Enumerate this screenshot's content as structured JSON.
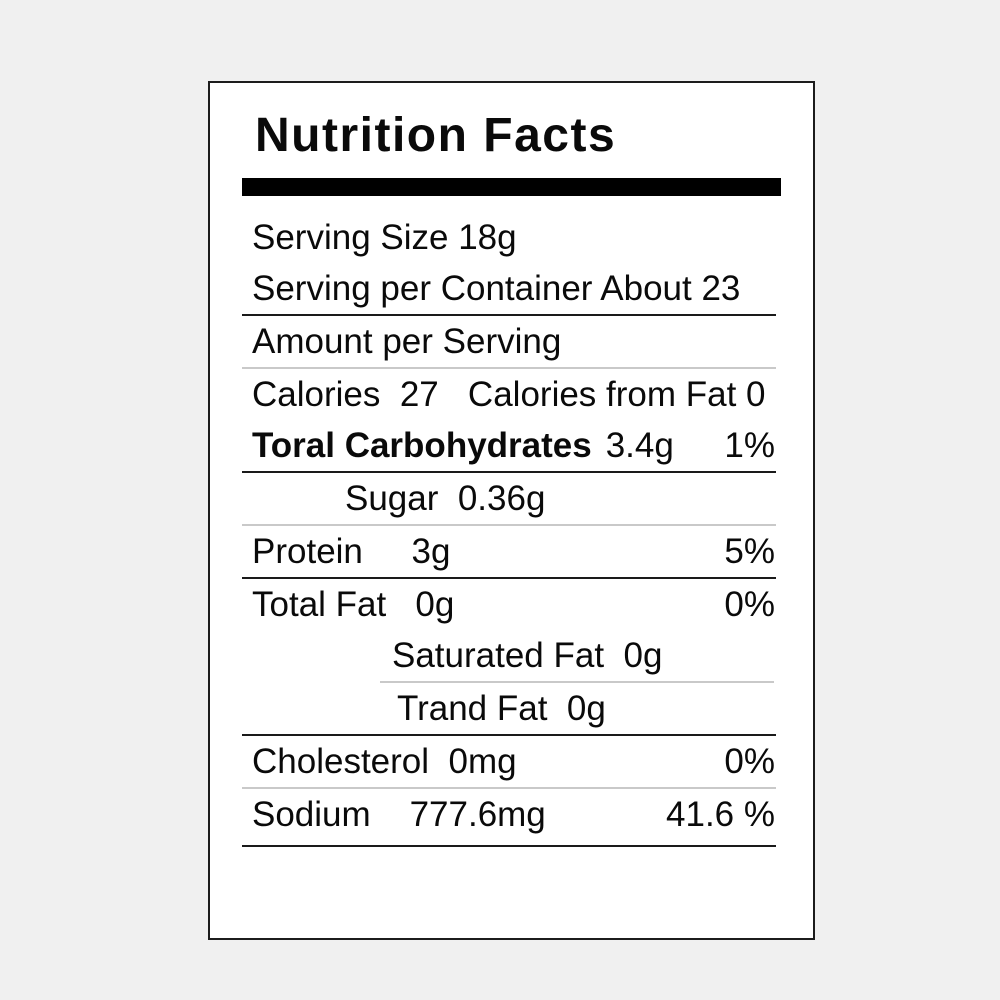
{
  "colors": {
    "bg": "#f0f0f0",
    "card": "#ffffff",
    "text": "#0a0a0a",
    "bar": "#000000",
    "ruledark": "#1a1a1a",
    "rulelight": "#c9c9c9"
  },
  "label": {
    "title": "Nutrition Facts",
    "rows": [
      {
        "id": "serving-size",
        "text": "Serving Size 18g"
      },
      {
        "id": "servings-per-container",
        "text": "Serving per Container About 23"
      },
      {
        "id": "amount-per-serving",
        "text": "Amount per Serving"
      },
      {
        "id": "calories",
        "text": "Calories  27   Calories from Fat 0"
      },
      {
        "id": "total-carbohydrates",
        "name": "Toral Carbohydrates",
        "amount": "3.4g",
        "daily_value": "1%"
      },
      {
        "id": "sugar",
        "text": "Sugar  0.36g"
      },
      {
        "id": "protein",
        "text": "Protein     3g",
        "daily_value": "5%"
      },
      {
        "id": "total-fat",
        "text": "Total Fat   0g",
        "daily_value": "0%"
      },
      {
        "id": "saturated-fat",
        "text": "Saturated Fat  0g"
      },
      {
        "id": "trans-fat",
        "text": "Trand Fat  0g"
      },
      {
        "id": "cholesterol",
        "text": "Cholesterol  0mg",
        "daily_value": "0%"
      },
      {
        "id": "sodium",
        "text": "Sodium    777.6mg",
        "daily_value": "41.6 %"
      }
    ]
  }
}
